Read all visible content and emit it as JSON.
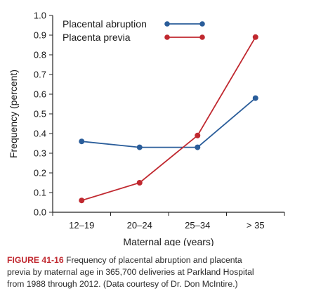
{
  "chart_data": {
    "type": "line",
    "categories": [
      "12–19",
      "20–24",
      "25–34",
      "> 35"
    ],
    "series": [
      {
        "name": "Placental abruption",
        "values": [
          0.36,
          0.33,
          0.33,
          0.58
        ],
        "color": "#2a5d9a"
      },
      {
        "name": "Placenta previa",
        "values": [
          0.06,
          0.15,
          0.39,
          0.89
        ],
        "color": "#c0282f"
      }
    ],
    "ylabel": "Frequency (percent)",
    "xlabel": "Maternal age (years)",
    "ylim": [
      0,
      1.0
    ],
    "yticks": [
      "0.0",
      "0.1",
      "0.2",
      "0.3",
      "0.4",
      "0.5",
      "0.6",
      "0.7",
      "0.8",
      "0.9",
      "1.0"
    ],
    "grid": false,
    "legend": "top-left"
  },
  "caption": {
    "label": "FIGURE 41-16",
    "text": "Frequency of placental abruption and placenta\nprevia by maternal age in 365,700 deliveries at Parkland Hospital\nfrom 1988 through 2012. (Data courtesy of Dr. Don McIntire.)"
  }
}
